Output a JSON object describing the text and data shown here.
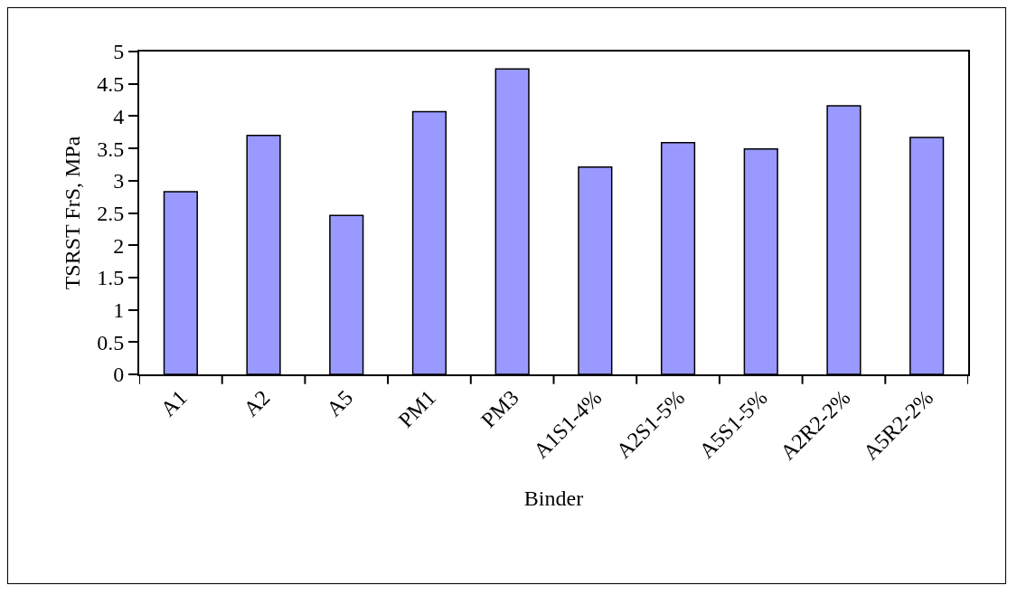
{
  "chart_data": {
    "type": "bar",
    "xlabel": "Binder",
    "ylabel": "TSRST FrS, MPa",
    "categories": [
      "A1",
      "A2",
      "A5",
      "PM1",
      "PM3",
      "A1S1-4%",
      "A2S1-5%",
      "A5S1-5%",
      "A2R2-2%",
      "A5R2-2%"
    ],
    "values": [
      2.83,
      3.7,
      2.46,
      4.07,
      4.73,
      3.21,
      3.59,
      3.49,
      4.16,
      3.67
    ],
    "color": "#9999ff",
    "ylim": [
      0,
      5
    ],
    "yticks": [
      0,
      0.5,
      1,
      1.5,
      2,
      2.5,
      3,
      3.5,
      4,
      4.5,
      5
    ],
    "grid": false
  }
}
